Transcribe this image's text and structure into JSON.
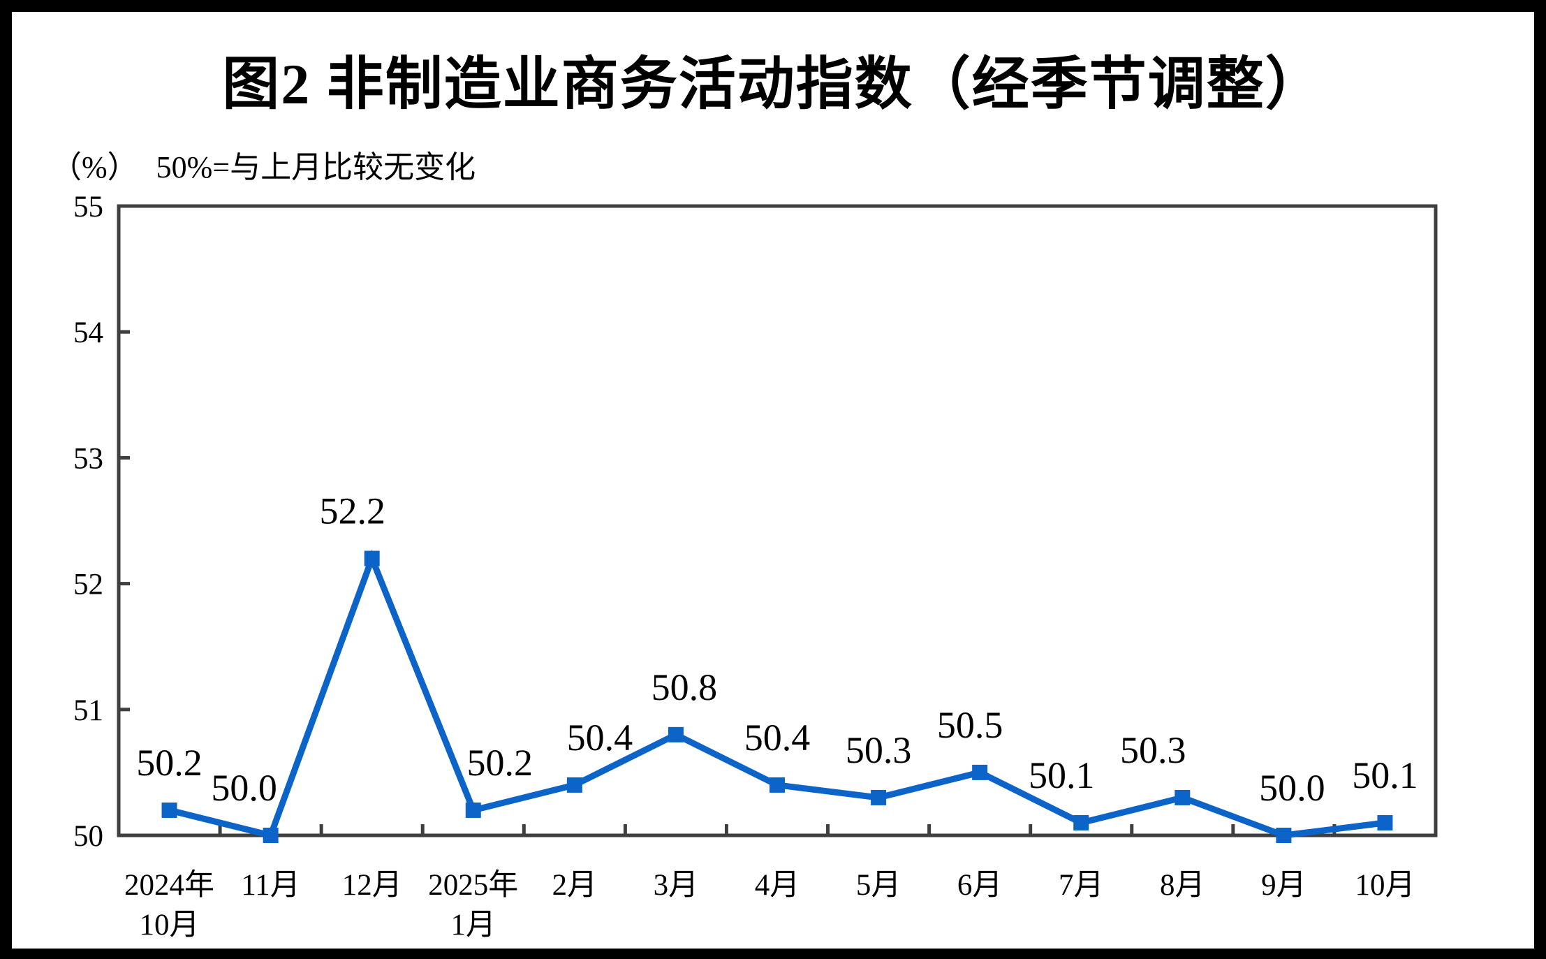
{
  "title": "图2 非制造业商务活动指数（经季节调整）",
  "subtitle": {
    "unit_label": "（%）",
    "reference_note": "50%=与上月比较无变化"
  },
  "chart_data": {
    "type": "line",
    "categories": [
      [
        "2024年",
        "10月"
      ],
      [
        "11月"
      ],
      [
        "12月"
      ],
      [
        "2025年",
        "1月"
      ],
      [
        "2月"
      ],
      [
        "3月"
      ],
      [
        "4月"
      ],
      [
        "5月"
      ],
      [
        "6月"
      ],
      [
        "7月"
      ],
      [
        "8月"
      ],
      [
        "9月"
      ],
      [
        "10月"
      ]
    ],
    "values": [
      50.2,
      50.0,
      52.2,
      50.2,
      50.4,
      50.8,
      50.4,
      50.3,
      50.5,
      50.1,
      50.3,
      50.0,
      50.1
    ],
    "data_labels": [
      "50.2",
      "50.0",
      "52.2",
      "50.2",
      "50.4",
      "50.8",
      "50.4",
      "50.3",
      "50.5",
      "50.1",
      "50.3",
      "50.0",
      "50.1"
    ],
    "title": "图2 非制造业商务活动指数（经季节调整）",
    "xlabel": "",
    "ylabel": "（%）",
    "ylim": [
      50,
      55
    ],
    "yticks": [
      50,
      51,
      52,
      53,
      54,
      55
    ],
    "grid": false,
    "legend": "none",
    "colors": {
      "line": "#0D64C8",
      "marker": "#0D64C8",
      "axis": "#3F3F3F",
      "text": "#000000",
      "background": "#FFFFFF",
      "page_border": "#000000"
    },
    "marker_shape": "square"
  }
}
